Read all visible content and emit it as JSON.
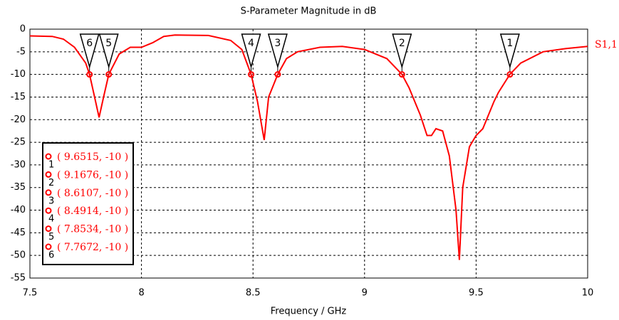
{
  "chart_data": {
    "type": "line",
    "title": "S-Parameter Magnitude in dB",
    "xlabel": "Frequency / GHz",
    "x": [
      7.5,
      7.6,
      7.65,
      7.7,
      7.75,
      7.7672,
      7.79,
      7.81,
      7.83,
      7.8534,
      7.9,
      7.95,
      8.0,
      8.05,
      8.1,
      8.15,
      8.3,
      8.4,
      8.45,
      8.4914,
      8.52,
      8.55,
      8.57,
      8.6107,
      8.65,
      8.7,
      8.8,
      8.9,
      9.0,
      9.1,
      9.1676,
      9.2,
      9.25,
      9.28,
      9.3,
      9.32,
      9.35,
      9.38,
      9.41,
      9.425,
      9.44,
      9.47,
      9.5,
      9.53,
      9.58,
      9.6,
      9.6515,
      9.7,
      9.8,
      9.9,
      10.0
    ],
    "series": [
      {
        "name": "S1,1",
        "color": "#ff0000",
        "values": [
          -1.5,
          -1.6,
          -2.2,
          -4,
          -7.5,
          -10,
          -15,
          -19.5,
          -15,
          -10,
          -5.5,
          -4,
          -4,
          -3,
          -1.6,
          -1.3,
          -1.4,
          -2.5,
          -4.5,
          -10,
          -16,
          -24.5,
          -15,
          -10,
          -6.5,
          -5,
          -4,
          -3.8,
          -4.5,
          -6.5,
          -10,
          -13,
          -19,
          -23.5,
          -23.5,
          -22,
          -22.5,
          -28,
          -40,
          -51,
          -35,
          -26,
          -23.5,
          -22,
          -16,
          -14,
          -10,
          -7.5,
          -5,
          -4.3,
          -3.8
        ]
      }
    ],
    "xlim": [
      7.5,
      10
    ],
    "ylim": [
      -55,
      0
    ],
    "xticks": [
      7.5,
      8,
      8.5,
      9,
      9.5,
      10
    ],
    "yticks": [
      0,
      -5,
      -10,
      -15,
      -20,
      -25,
      -30,
      -35,
      -40,
      -45,
      -50,
      -55
    ],
    "grid": true,
    "markers": [
      {
        "label": "1",
        "x": 9.6515,
        "y": -10,
        "readout": "( 9.6515, -10 )"
      },
      {
        "label": "2",
        "x": 9.1676,
        "y": -10,
        "readout": "( 9.1676, -10 )"
      },
      {
        "label": "3",
        "x": 8.6107,
        "y": -10,
        "readout": "( 8.6107, -10 )"
      },
      {
        "label": "4",
        "x": 8.4914,
        "y": -10,
        "readout": "( 8.4914, -10 )"
      },
      {
        "label": "5",
        "x": 7.8534,
        "y": -10,
        "readout": "( 7.8534, -10 )"
      },
      {
        "label": "6",
        "x": 7.7672,
        "y": -10,
        "readout": "( 7.7672, -10 )"
      }
    ]
  }
}
